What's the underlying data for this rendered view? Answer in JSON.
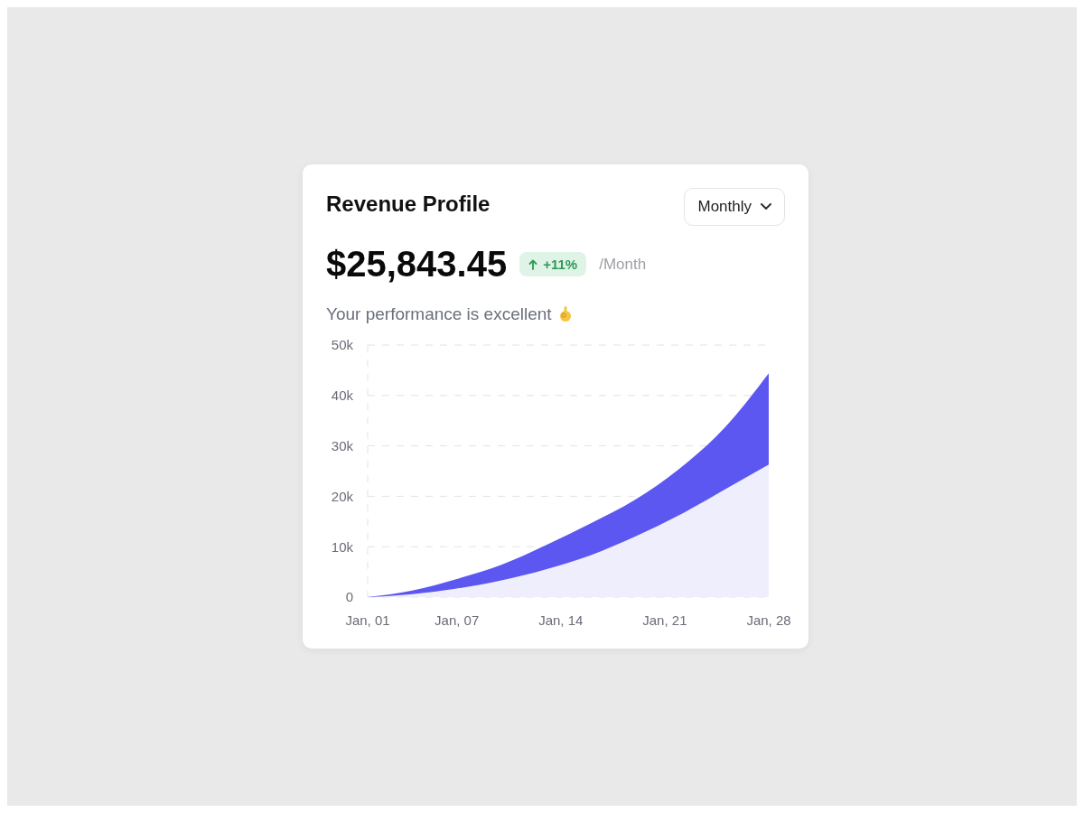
{
  "chart_data": {
    "type": "area",
    "title": "Revenue Profile",
    "subtitle": "Your performance is excellent",
    "annotations": [
      "Monthly",
      "$25,843.45",
      "+11%",
      "/Month"
    ],
    "x": [
      "--01-01",
      "--01-04",
      "--01-07",
      "--01-10",
      "--01-13",
      "--01-16",
      "--01-19",
      "--01-22",
      "--01-25",
      "--01-28"
    ],
    "series": [
      {
        "color": "#5b57f0",
        "values": [
          0,
          1300,
          3600,
          6400,
          10300,
          14600,
          19300,
          25500,
          33500,
          44400
        ]
      },
      {
        "color": "#efeefc",
        "values": [
          0,
          600,
          1700,
          3300,
          5500,
          8300,
          12000,
          16300,
          21300,
          26300
        ]
      }
    ],
    "xlim": [
      "--01-01",
      "--01-28"
    ],
    "xticks": [
      {
        "value": "--01-01",
        "label": "Jan, 01"
      },
      {
        "value": "--01-07",
        "label": "Jan, 07"
      },
      {
        "value": "--01-14",
        "label": "Jan, 14"
      },
      {
        "value": "--01-21",
        "label": "Jan, 21"
      },
      {
        "value": "--01-28",
        "label": "Jan, 28"
      }
    ],
    "ylim": [
      0,
      50000
    ],
    "yticks": [
      0,
      {
        "value": 10000,
        "label": "10k"
      },
      {
        "value": 20000,
        "label": "20k"
      },
      {
        "value": 30000,
        "label": "30k"
      },
      {
        "value": 40000,
        "label": "40k"
      },
      {
        "value": 50000,
        "label": "50k"
      }
    ],
    "grid": "y",
    "legend": false
  }
}
